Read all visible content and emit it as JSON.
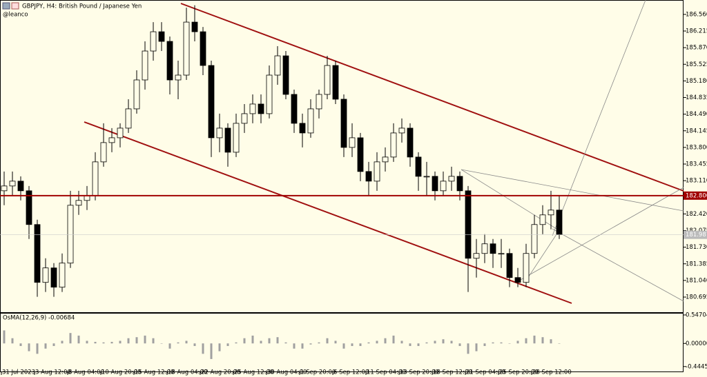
{
  "chart_data": {
    "type": "candlestick",
    "title": "GBPJPY, H4:  British Pound / Japanese Yen",
    "subtitle": "@leanco",
    "ylim": [
      180.395,
      186.83
    ],
    "yticks": [
      {
        "value": 186.56,
        "label": "186.560"
      },
      {
        "value": 186.215,
        "label": "186.215"
      },
      {
        "value": 185.87,
        "label": "185.870"
      },
      {
        "value": 185.525,
        "label": "185.525"
      },
      {
        "value": 185.18,
        "label": "185.180"
      },
      {
        "value": 184.835,
        "label": "184.835"
      },
      {
        "value": 184.49,
        "label": "184.490"
      },
      {
        "value": 184.145,
        "label": "184.145"
      },
      {
        "value": 183.8,
        "label": "183.800"
      },
      {
        "value": 183.455,
        "label": "183.455"
      },
      {
        "value": 183.11,
        "label": "183.110"
      },
      {
        "value": 182.42,
        "label": "182.420"
      },
      {
        "value": 182.075,
        "label": "182.075"
      },
      {
        "value": 181.73,
        "label": "181.730"
      },
      {
        "value": 181.385,
        "label": "181.385"
      },
      {
        "value": 181.04,
        "label": "181.040"
      },
      {
        "value": 180.695,
        "label": "180.695"
      }
    ],
    "hline": {
      "value": 182.8,
      "label": "182.800",
      "color": "#a00000"
    },
    "current_price": {
      "value": 181.987,
      "label": "181.987"
    },
    "time_labels": [
      "31 Jul 2023",
      "3 Aug 12:00",
      "8 Aug 04:00",
      "10 Aug 20:00",
      "15 Aug 12:00",
      "18 Aug 04:00",
      "22 Aug 20:00",
      "25 Aug 12:00",
      "30 Aug 04:00",
      "1 Sep 20:00",
      "6 Sep 12:00",
      "11 Sep 04:00",
      "13 Sep 20:00",
      "18 Sep 12:00",
      "21 Sep 04:00",
      "25 Sep 20:00",
      "28 Sep 12:00"
    ],
    "candles": [
      [
        182.9,
        183.3,
        182.6,
        183.0
      ],
      [
        183.0,
        183.3,
        182.8,
        183.1
      ],
      [
        183.1,
        183.2,
        182.7,
        182.9
      ],
      [
        182.9,
        183.0,
        181.9,
        182.2
      ],
      [
        182.2,
        182.3,
        180.7,
        181.0
      ],
      [
        181.0,
        181.5,
        180.8,
        181.3
      ],
      [
        181.3,
        181.4,
        180.7,
        180.9
      ],
      [
        180.9,
        181.6,
        180.8,
        181.4
      ],
      [
        181.4,
        182.9,
        181.3,
        182.6
      ],
      [
        182.6,
        182.9,
        182.4,
        182.7
      ],
      [
        182.7,
        183.0,
        182.5,
        182.8
      ],
      [
        182.8,
        183.7,
        182.7,
        183.5
      ],
      [
        183.5,
        184.3,
        183.4,
        183.9
      ],
      [
        183.9,
        184.2,
        183.7,
        184.0
      ],
      [
        184.0,
        184.3,
        183.8,
        184.2
      ],
      [
        184.2,
        184.8,
        184.1,
        184.6
      ],
      [
        184.6,
        185.4,
        184.5,
        185.2
      ],
      [
        185.2,
        186.0,
        185.0,
        185.8
      ],
      [
        185.8,
        186.4,
        185.6,
        186.2
      ],
      [
        186.2,
        186.4,
        185.8,
        186.0
      ],
      [
        186.0,
        186.1,
        184.9,
        185.2
      ],
      [
        185.2,
        185.6,
        184.8,
        185.3
      ],
      [
        185.3,
        186.7,
        185.2,
        186.4
      ],
      [
        186.4,
        186.75,
        186.0,
        186.2
      ],
      [
        186.2,
        186.3,
        185.3,
        185.5
      ],
      [
        185.5,
        185.6,
        183.6,
        184.0
      ],
      [
        184.0,
        184.5,
        183.7,
        184.2
      ],
      [
        184.2,
        184.3,
        183.4,
        183.7
      ],
      [
        183.7,
        184.5,
        183.6,
        184.3
      ],
      [
        184.3,
        184.7,
        184.1,
        184.5
      ],
      [
        184.5,
        184.9,
        184.3,
        184.7
      ],
      [
        184.7,
        184.9,
        184.3,
        184.5
      ],
      [
        184.5,
        185.5,
        184.4,
        185.3
      ],
      [
        185.3,
        185.9,
        185.1,
        185.7
      ],
      [
        185.7,
        185.8,
        184.8,
        184.9
      ],
      [
        184.9,
        185.0,
        184.1,
        184.3
      ],
      [
        184.3,
        184.5,
        183.8,
        184.1
      ],
      [
        184.1,
        184.8,
        184.0,
        184.6
      ],
      [
        184.6,
        185.0,
        184.4,
        184.9
      ],
      [
        184.9,
        185.7,
        184.8,
        185.5
      ],
      [
        185.5,
        185.6,
        184.7,
        184.8
      ],
      [
        184.8,
        184.9,
        183.6,
        183.8
      ],
      [
        183.8,
        184.3,
        183.6,
        184.0
      ],
      [
        184.0,
        184.1,
        183.1,
        183.3
      ],
      [
        183.3,
        183.5,
        182.8,
        183.1
      ],
      [
        183.1,
        183.7,
        182.9,
        183.5
      ],
      [
        183.5,
        183.8,
        183.3,
        183.6
      ],
      [
        183.6,
        184.3,
        183.5,
        184.1
      ],
      [
        184.1,
        184.4,
        183.9,
        184.2
      ],
      [
        184.2,
        184.3,
        183.4,
        183.6
      ],
      [
        183.6,
        183.7,
        182.9,
        183.2
      ],
      [
        183.2,
        183.5,
        182.8,
        183.2
      ],
      [
        183.2,
        183.3,
        182.7,
        182.9
      ],
      [
        182.9,
        183.3,
        182.8,
        183.1
      ],
      [
        183.1,
        183.4,
        182.9,
        183.2
      ],
      [
        183.2,
        183.3,
        182.7,
        182.9
      ],
      [
        182.9,
        183.0,
        180.8,
        181.5
      ],
      [
        181.5,
        181.9,
        181.1,
        181.6
      ],
      [
        181.6,
        182.0,
        181.4,
        181.8
      ],
      [
        181.8,
        181.9,
        181.3,
        181.6
      ],
      [
        181.6,
        181.9,
        181.3,
        181.6
      ],
      [
        181.6,
        181.7,
        180.9,
        181.1
      ],
      [
        181.1,
        181.3,
        180.9,
        181.0
      ],
      [
        181.0,
        181.8,
        180.9,
        181.6
      ],
      [
        181.6,
        182.4,
        181.5,
        182.2
      ],
      [
        182.2,
        182.6,
        182.0,
        182.4
      ],
      [
        182.4,
        182.9,
        182.1,
        182.5
      ],
      [
        182.5,
        182.8,
        181.9,
        181.99
      ]
    ],
    "indicator": {
      "label": "OsMA(12,26,9) -0.00684",
      "color": "#a0a0a0",
      "ylim": [
        -0.5,
        0.56
      ],
      "yticks": [
        0.54704,
        {
          "value": 0,
          "label": "0.00000"
        },
        -0.44457
      ],
      "values": [
        0.25,
        0.1,
        -0.05,
        -0.15,
        -0.2,
        -0.1,
        -0.05,
        0.05,
        0.2,
        0.15,
        0.05,
        0.03,
        0.02,
        0.03,
        0.05,
        0.1,
        0.12,
        0.15,
        0.1,
        0.0,
        -0.1,
        0.02,
        0.05,
        -0.05,
        -0.2,
        -0.3,
        -0.15,
        -0.05,
        0.02,
        0.1,
        0.15,
        0.05,
        0.1,
        0.12,
        0.02,
        -0.1,
        -0.1,
        -0.02,
        0.02,
        0.1,
        0.05,
        -0.1,
        -0.05,
        -0.05,
        0.02,
        0.05,
        0.1,
        0.15,
        0.05,
        -0.05,
        -0.05,
        0.02,
        0.05,
        0.08,
        0.05,
        -0.05,
        -0.2,
        -0.15,
        -0.05,
        0.02,
        0.02,
        0.0,
        0.05,
        0.1,
        0.15,
        0.12,
        0.08,
        -0.00684
      ]
    }
  }
}
